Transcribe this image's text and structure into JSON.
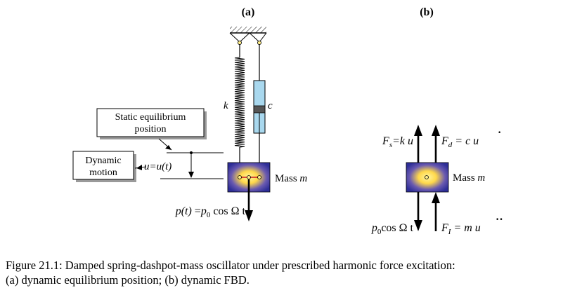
{
  "panels": {
    "a_label": "(a)",
    "b_label": "(b)"
  },
  "panel_a": {
    "spring_label": "k",
    "dashpot_label": "c",
    "static_box_line1": "Static equilibrium",
    "static_box_line2": "position",
    "dynamic_box_line1": "Dynamic",
    "dynamic_box_line2": "motion",
    "displacement": "u=u(t)",
    "mass_label_main": "Mass ",
    "mass_label_var": "m",
    "force_label": {
      "lhs": "p(t)",
      "eq": " =",
      "p": "p",
      "sub": "0",
      "rest": " cos Ω t"
    }
  },
  "panel_b": {
    "spring_force": {
      "F": "F",
      "sub": "s",
      "rest": "=k u"
    },
    "damping_force": {
      "F": "F",
      "sub": "d",
      "rest": " = c u"
    },
    "dot": "·",
    "mass_label_main": "Mass ",
    "mass_label_var": "m",
    "applied_force": {
      "p": "p",
      "sub": "0",
      "rest": "cos Ω t"
    },
    "inertia_force": {
      "F": "F",
      "sub": "I",
      "rest": " = m u"
    },
    "ddot": "··"
  },
  "colors": {
    "mass_fill": "#2e2e98",
    "mass_glow": "#ffe866",
    "dashpot_fill": "#a9d8ee",
    "piston": "#555555",
    "connector_red": "#c8181e",
    "box_shadow": "#9a9a9a"
  },
  "caption": {
    "line1": "Figure 21.1: Damped spring-dashpot-mass oscillator under prescribed harmonic force excitation:",
    "line2": "(a) dynamic equilibrium position; (b) dynamic FBD."
  }
}
